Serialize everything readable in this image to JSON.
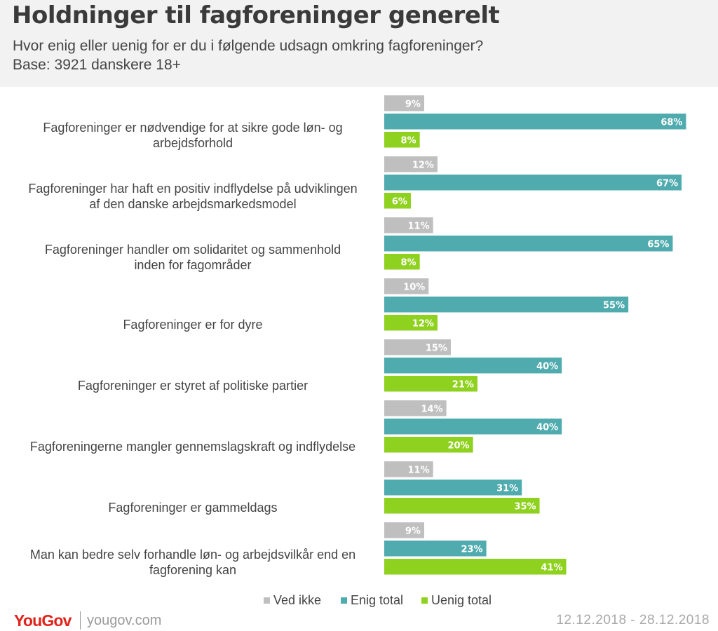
{
  "header": {
    "title": "Holdninger til fagforeninger generelt",
    "subtitle": "Hvor enig eller uenig for er du i følgende udsagn omkring fagforeninger?",
    "base": "Base: 3921 danskere 18+"
  },
  "chart_data": {
    "type": "bar",
    "orientation": "horizontal",
    "categories": [
      [
        "Fagforeninger er nødvendige for at sikre gode løn- og",
        "arbejdsforhold"
      ],
      [
        "Fagforeninger har haft en positiv indflydelse på udviklingen",
        "af den danske arbejdsmarkedsmodel"
      ],
      [
        "Fagforeninger handler om solidaritet og sammenhold",
        "inden for fagområder"
      ],
      [
        "Fagforeninger er for dyre"
      ],
      [
        "Fagforeninger er styret af politiske partier"
      ],
      [
        "Fagforeningerne mangler gennemslagskraft og indflydelse"
      ],
      [
        "Fagforeninger er gammeldags"
      ],
      [
        "Man kan bedre selv forhandle løn- og arbejdsvilkår end en",
        "fagforening kan"
      ]
    ],
    "series": [
      {
        "name": "Ved ikke",
        "color": "#bfbfbf",
        "values": [
          9,
          12,
          11,
          10,
          15,
          14,
          11,
          9
        ]
      },
      {
        "name": "Enig total",
        "color": "#4fabae",
        "values": [
          68,
          67,
          65,
          55,
          40,
          40,
          31,
          23
        ]
      },
      {
        "name": "Uenig total",
        "color": "#8fd11f",
        "values": [
          8,
          6,
          8,
          12,
          21,
          20,
          35,
          41
        ]
      }
    ],
    "value_suffix": "%",
    "legend_position": "bottom",
    "grid": false
  },
  "footer": {
    "brand": "YouGov",
    "site": "yougov.com",
    "date_range": "12.12.2018 - 28.12.2018"
  }
}
